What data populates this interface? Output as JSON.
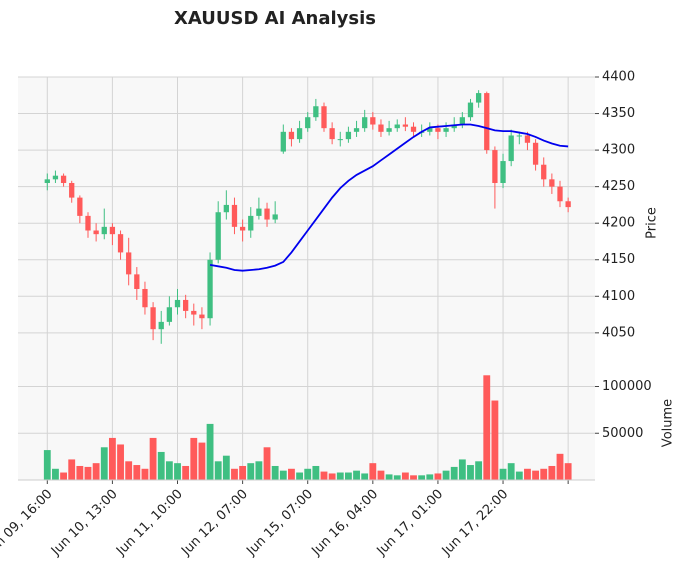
{
  "chart_data": {
    "type": "candlestick",
    "title": "XAUUSD AI Analysis",
    "ylabel": "Price",
    "grid": true,
    "up_color": "#3fbf82",
    "down_color": "#ff5a5a",
    "ylim": [
      4006,
      4400
    ],
    "yticks": [
      4050,
      4100,
      4150,
      4200,
      4250,
      4300,
      4350,
      4400
    ],
    "xlim": [
      -3.6,
      67.3
    ],
    "xticks": [
      {
        "value": 0,
        "label": "Jun 09, 16:00"
      },
      {
        "value": 8,
        "label": "Jun 10, 13:00"
      },
      {
        "value": 16,
        "label": "Jun 11, 10:00"
      },
      {
        "value": 24,
        "label": "Jun 12, 07:00"
      },
      {
        "value": 32,
        "label": "Jun 15, 07:00"
      },
      {
        "value": 40,
        "label": "Jun 16, 04:00"
      },
      {
        "value": 48,
        "label": "Jun 17, 01:00"
      },
      {
        "value": 56,
        "label": "Jun 17, 22:00"
      },
      {
        "value": 64,
        "label": null
      }
    ],
    "open": [
      4255,
      4260,
      4265,
      4255,
      4235,
      4210,
      4190,
      4185,
      4195,
      4185,
      4160,
      4130,
      4110,
      4085,
      4055,
      4065,
      4085,
      4095,
      4080,
      4075,
      4070,
      4150,
      4215,
      4225,
      4195,
      4190,
      4210,
      4220,
      4205,
      4298,
      4325,
      4315,
      4330,
      4345,
      4360,
      4330,
      4315,
      4315,
      4325,
      4330,
      4345,
      4335,
      4325,
      4330,
      4335,
      4332,
      4325,
      4325,
      4330,
      4325,
      4330,
      4335,
      4345,
      4365,
      4378,
      4300,
      4255,
      4285,
      4320,
      4320,
      4310,
      4280,
      4260,
      4250,
      4230
    ],
    "high": [
      4268,
      4272,
      4268,
      4258,
      4238,
      4215,
      4200,
      4220,
      4200,
      4190,
      4180,
      4140,
      4120,
      4092,
      4080,
      4100,
      4110,
      4102,
      4090,
      4085,
      4160,
      4230,
      4245,
      4235,
      4205,
      4222,
      4235,
      4228,
      4230,
      4335,
      4330,
      4340,
      4352,
      4370,
      4365,
      4338,
      4325,
      4332,
      4340,
      4355,
      4352,
      4342,
      4340,
      4342,
      4345,
      4338,
      4335,
      4338,
      4335,
      4338,
      4345,
      4352,
      4370,
      4382,
      4380,
      4305,
      4295,
      4328,
      4325,
      4325,
      4315,
      4290,
      4268,
      4258,
      4235
    ],
    "low": [
      4245,
      4255,
      4250,
      4228,
      4200,
      4180,
      4175,
      4178,
      4170,
      4150,
      4115,
      4095,
      4075,
      4040,
      4035,
      4060,
      4075,
      4070,
      4060,
      4055,
      4060,
      4145,
      4205,
      4185,
      4175,
      4180,
      4205,
      4195,
      4200,
      4295,
      4305,
      4310,
      4325,
      4340,
      4325,
      4308,
      4305,
      4310,
      4318,
      4325,
      4328,
      4318,
      4320,
      4325,
      4326,
      4318,
      4318,
      4320,
      4315,
      4318,
      4325,
      4330,
      4340,
      4358,
      4295,
      4220,
      4248,
      4278,
      4308,
      4300,
      4272,
      4250,
      4240,
      4222,
      4215
    ],
    "close": [
      4260,
      4265,
      4255,
      4235,
      4210,
      4190,
      4185,
      4195,
      4185,
      4160,
      4130,
      4110,
      4085,
      4055,
      4065,
      4085,
      4095,
      4080,
      4075,
      4070,
      4150,
      4215,
      4225,
      4195,
      4190,
      4210,
      4220,
      4205,
      4212,
      4325,
      4315,
      4330,
      4345,
      4360,
      4330,
      4315,
      4315,
      4325,
      4330,
      4345,
      4335,
      4325,
      4330,
      4335,
      4332,
      4325,
      4325,
      4330,
      4325,
      4330,
      4335,
      4345,
      4365,
      4378,
      4300,
      4255,
      4285,
      4320,
      4320,
      4310,
      4280,
      4260,
      4250,
      4230,
      4222
    ],
    "ma": {
      "color": "#0000ee",
      "values": [
        null,
        null,
        null,
        null,
        null,
        null,
        null,
        null,
        null,
        null,
        null,
        null,
        null,
        null,
        null,
        null,
        null,
        null,
        null,
        null,
        4143,
        4141,
        4139,
        4136,
        4135,
        4136,
        4137,
        4139,
        4142,
        4147,
        4160,
        4175,
        4190,
        4205,
        4220,
        4235,
        4248,
        4258,
        4266,
        4272,
        4278,
        4286,
        4294,
        4302,
        4310,
        4318,
        4325,
        4331,
        4332,
        4333,
        4334,
        4335,
        4335,
        4333,
        4330,
        4327,
        4326,
        4326,
        4324,
        4322,
        4318,
        4313,
        4309,
        4306,
        4305
      ]
    },
    "volume": {
      "ylabel": "Volume",
      "ylim": [
        0,
        123000
      ],
      "yticks": [
        50000,
        100000
      ],
      "values": [
        32000,
        12000,
        8000,
        22000,
        15000,
        14000,
        18000,
        35000,
        45000,
        38000,
        20000,
        16000,
        12000,
        45000,
        30000,
        20000,
        18000,
        15000,
        45000,
        40000,
        60000,
        20000,
        26000,
        12000,
        15000,
        18000,
        20000,
        35000,
        15000,
        10000,
        12000,
        8000,
        12000,
        15000,
        9000,
        7000,
        8000,
        8000,
        10000,
        7000,
        18000,
        10000,
        6000,
        5000,
        8000,
        5000,
        5000,
        6000,
        7000,
        10000,
        14000,
        22000,
        16000,
        20000,
        112000,
        85000,
        12000,
        18000,
        9000,
        12000,
        10000,
        12000,
        15000,
        28000,
        18000
      ]
    }
  }
}
